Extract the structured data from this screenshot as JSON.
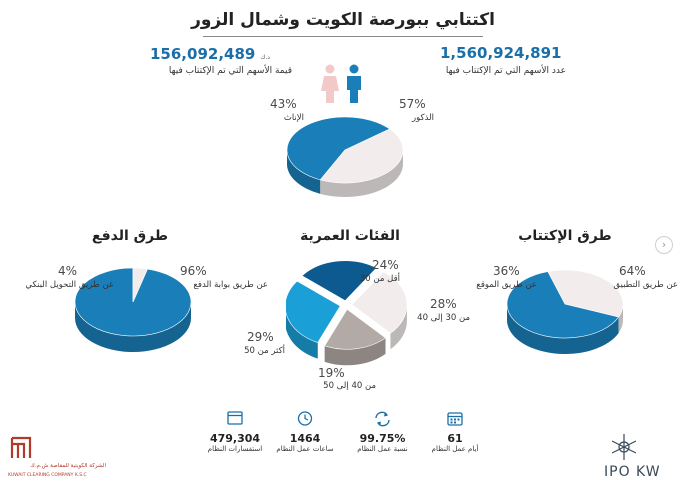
{
  "title": "اكتتابي ببورصة الكويت وشمال الزور",
  "top_stats": {
    "shares_value": {
      "value": "156,092,489",
      "unit": "د.ك",
      "label": "قيمة الأسهم التي تم الإكتتاب فيها"
    },
    "shares_count": {
      "value": "1,560,924,891",
      "label": "عدد الأسهم التي تم الإكتتاب فيها"
    }
  },
  "icons": {
    "female": "female-person-icon",
    "male": "male-person-icon",
    "colors": {
      "female": "#f2c9c9",
      "male": "#1a7fb8"
    }
  },
  "sections": {
    "payment": "طرق الدفع",
    "age": "الفئات العمرية",
    "subscription": "طرق الإكتتاب"
  },
  "stats": [
    {
      "value": "479,304",
      "label": "استفسارات النظام",
      "icon": "window-icon"
    },
    {
      "value": "1464",
      "label": "ساعات عمل النظام",
      "icon": "clock-icon"
    },
    {
      "value": "99.75%",
      "label": "نسبة عمل النظام",
      "icon": "refresh-icon"
    },
    {
      "value": "61",
      "label": "أيام عمل النظام",
      "icon": "calendar-icon"
    }
  ],
  "footer": {
    "company_ar": "الشركة الكويتية للمقاصة ش.م.ك",
    "company_en": "KUWAIT CLEARING COMPANY K.S.C",
    "ipo_text": "IPO KW"
  },
  "colors": {
    "blue": "#1a7fb8",
    "blue_dark": "#10659a",
    "light": "#f2ecec",
    "light_dark": "#d9d1d1",
    "navy": "#0d5a91",
    "gray": "#b3aaa5",
    "gray_dark": "#8f8782",
    "accent_num": "#1a6fa8"
  },
  "chart_data": [
    {
      "type": "pie",
      "title": "",
      "slices": [
        {
          "label": "الذكور",
          "value": 57,
          "display": "57%",
          "color": "#1a7fb8"
        },
        {
          "label": "الإناث",
          "value": 43,
          "display": "43%",
          "color": "#f2ecec"
        }
      ]
    },
    {
      "type": "pie",
      "title": "طرق الدفع",
      "slices": [
        {
          "label": "عن طريق بوابة الدفع",
          "value": 96,
          "display": "96%",
          "color": "#1a7fb8"
        },
        {
          "label": "عن طريق التحويل البنكي",
          "value": 4,
          "display": "4%",
          "color": "#f2ecec"
        }
      ]
    },
    {
      "type": "pie",
      "title": "الفئات العمرية",
      "slices": [
        {
          "label": "أقل من 30",
          "value": 24,
          "display": "24%",
          "color": "#0d5a91"
        },
        {
          "label": "من 30 إلى 40",
          "value": 28,
          "display": "28%",
          "color": "#f2ecec"
        },
        {
          "label": "من 40 إلى 50",
          "value": 19,
          "display": "19%",
          "color": "#b3aaa5"
        },
        {
          "label": "أكثر من 50",
          "value": 29,
          "display": "29%",
          "color": "#1a9fd6"
        }
      ]
    },
    {
      "type": "pie",
      "title": "طرق الإكتتاب",
      "slices": [
        {
          "label": "عن طريق التطبيق",
          "value": 64,
          "display": "64%",
          "color": "#1a7fb8"
        },
        {
          "label": "عن طريق الموقع",
          "value": 36,
          "display": "36%",
          "color": "#f2ecec"
        }
      ]
    }
  ]
}
